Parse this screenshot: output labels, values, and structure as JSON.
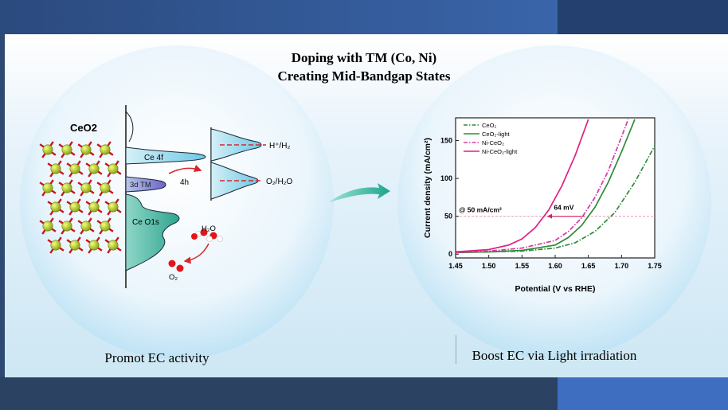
{
  "title": {
    "line1": "Doping with TM (Co, Ni)",
    "line2": "Creating Mid-Bandgap States"
  },
  "left": {
    "material_label": "CeO2",
    "bands": {
      "ce4f": "Ce 4f",
      "tm3d": "3d TM",
      "o1s": "Ce O1s"
    },
    "hole_label": "4h",
    "levels": {
      "h": "H⁺/H₂",
      "o": "O₂/H₂O"
    },
    "water_label": "H₂O",
    "oxygen_label": "O₂",
    "caption": "Promot EC activity"
  },
  "right": {
    "caption": "Boost EC via Light irradiation"
  },
  "chart_data": {
    "type": "line",
    "xlabel": "Potential (V vs RHE)",
    "ylabel": "Current density (mA/cm²)",
    "xlim": [
      1.45,
      1.75
    ],
    "ylim": [
      -5,
      180
    ],
    "xticks": [
      "1.45",
      "1.50",
      "1.55",
      "1.60",
      "1.65",
      "1.70",
      "1.75"
    ],
    "yticks": [
      "0",
      "50",
      "100",
      "150"
    ],
    "legend_position": "top-left",
    "annotation_ref": "@ 50 mA/cm²",
    "annotation_gap": "64 mV",
    "reference_y": 50,
    "series": [
      {
        "name": "CeO₂",
        "color": "#2e8b3a",
        "dash": "dashdot",
        "x": [
          1.45,
          1.5,
          1.55,
          1.6,
          1.63,
          1.66,
          1.69,
          1.72,
          1.75
        ],
        "y": [
          2,
          3,
          4,
          8,
          15,
          30,
          55,
          95,
          143
        ]
      },
      {
        "name": "CeO₂-light",
        "color": "#2e8b3a",
        "dash": "solid",
        "x": [
          1.45,
          1.5,
          1.55,
          1.6,
          1.62,
          1.64,
          1.66,
          1.68,
          1.7,
          1.72
        ],
        "y": [
          2,
          3,
          5,
          12,
          22,
          38,
          62,
          95,
          135,
          178
        ]
      },
      {
        "name": "Ni-CeO₂",
        "color": "#d63a9f",
        "dash": "dashdot",
        "x": [
          1.45,
          1.5,
          1.55,
          1.6,
          1.62,
          1.64,
          1.66,
          1.68,
          1.7,
          1.71
        ],
        "y": [
          2,
          4,
          8,
          18,
          30,
          48,
          75,
          110,
          155,
          178
        ]
      },
      {
        "name": "Ni-CeO₂-light",
        "color": "#e02080",
        "dash": "solid",
        "x": [
          1.45,
          1.5,
          1.53,
          1.55,
          1.57,
          1.59,
          1.61,
          1.63,
          1.65
        ],
        "y": [
          3,
          6,
          12,
          20,
          35,
          58,
          90,
          130,
          178
        ]
      }
    ]
  }
}
